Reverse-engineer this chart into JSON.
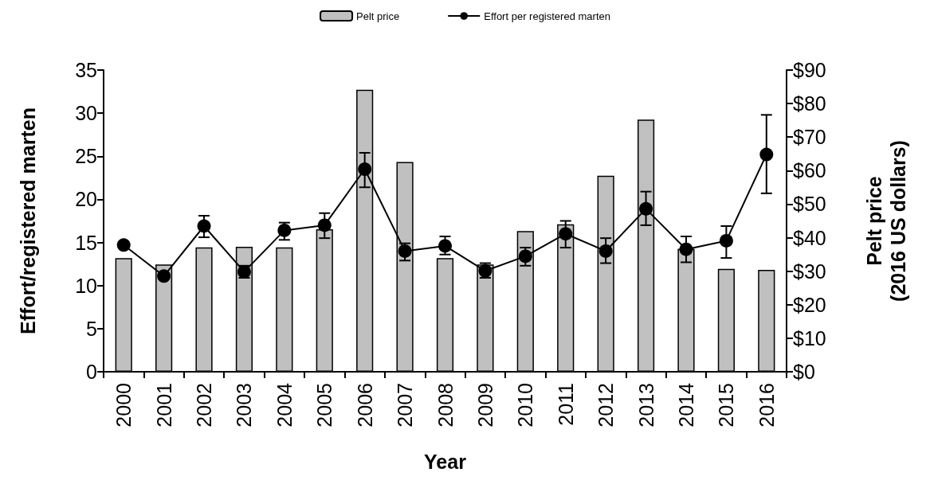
{
  "chart_data": {
    "type": "bar",
    "xlabel": "Year",
    "ylabel": "Effort/registered marten",
    "y2label": "Pelt price\n(2016 US dollars)",
    "categories": [
      "2000",
      "2001",
      "2002",
      "2003",
      "2004",
      "2005",
      "2006",
      "2007",
      "2008",
      "2009",
      "2010",
      "2011",
      "2012",
      "2013",
      "2014",
      "2015",
      "2016"
    ],
    "series": [
      {
        "name": "Pelt price",
        "axis": "y2",
        "color": "#c0c0c0",
        "values": [
          33.9,
          32.0,
          37.1,
          37.3,
          37.1,
          42.5,
          84.1,
          62.6,
          33.9,
          32.0,
          42.0,
          44.0,
          58.5,
          75.2,
          36.7,
          30.7,
          30.4
        ]
      },
      {
        "name": "Effort per registered marten",
        "type": "line",
        "color": "#000000",
        "marker": "circle",
        "line_style": "solid",
        "values": [
          14.7,
          11.1,
          16.9,
          11.6,
          16.4,
          17.0,
          23.5,
          14.0,
          14.6,
          11.7,
          13.4,
          16.0,
          14.0,
          18.9,
          14.2,
          15.2,
          25.2
        ],
        "errors": [
          null,
          null,
          [
            15.6,
            18.1
          ],
          [
            10.9,
            12.3
          ],
          [
            15.3,
            17.3
          ],
          [
            15.5,
            18.4
          ],
          [
            21.4,
            25.4
          ],
          [
            12.9,
            14.9
          ],
          [
            13.6,
            15.7
          ],
          [
            10.9,
            12.6
          ],
          [
            12.3,
            14.4
          ],
          [
            14.4,
            17.5
          ],
          [
            12.6,
            15.5
          ],
          [
            17.0,
            20.9
          ],
          [
            12.7,
            15.7
          ],
          [
            13.2,
            16.9
          ],
          [
            20.7,
            29.8
          ]
        ]
      }
    ],
    "ylim": [
      0,
      35
    ],
    "yticks": [
      0,
      5,
      10,
      15,
      20,
      25,
      30,
      35
    ],
    "y2lim": [
      0,
      90
    ],
    "y2ticks": [
      {
        "value": 0,
        "label": "$0"
      },
      {
        "value": 10,
        "label": "$10"
      },
      {
        "value": 20,
        "label": "$20"
      },
      {
        "value": 30,
        "label": "$30"
      },
      {
        "value": 40,
        "label": "$40"
      },
      {
        "value": 50,
        "label": "$50"
      },
      {
        "value": 60,
        "label": "$60"
      },
      {
        "value": 70,
        "label": "$70"
      },
      {
        "value": 80,
        "label": "$80"
      },
      {
        "value": 90,
        "label": "$90"
      }
    ],
    "grid": false,
    "legend": "top"
  }
}
